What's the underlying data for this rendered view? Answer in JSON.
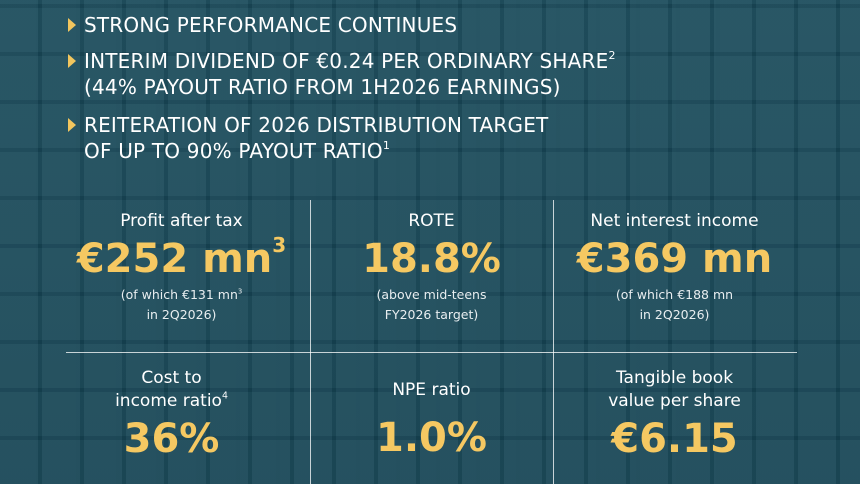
{
  "bullets": [
    {
      "lines": [
        {
          "text": "STRONG PERFORMANCE CONTINUES"
        }
      ]
    },
    {
      "lines": [
        {
          "text": "INTERIM DIVIDEND OF €0.24 PER ORDINARY SHARE",
          "sup": "2"
        },
        {
          "text": "(44% PAYOUT RATIO FROM 1H2026 EARNINGS)"
        }
      ]
    },
    {
      "lines": [
        {
          "text": "REITERATION OF 2026 DISTRIBUTION TARGET"
        },
        {
          "text": "OF UP TO 90% PAYOUT RATIO",
          "sup": "1"
        }
      ]
    }
  ],
  "metrics": [
    {
      "label": [
        {
          "text": "Profit after tax"
        }
      ],
      "value": "€252 mn",
      "value_sup": "3",
      "note": [
        {
          "text": "(of which €131 mn",
          "sup": "3"
        },
        {
          "text": "in 2Q2026)"
        }
      ]
    },
    {
      "label": [
        {
          "text": "ROTE"
        }
      ],
      "value": "18.8%",
      "note": [
        {
          "text": "(above mid-teens"
        },
        {
          "text": "FY2026 target)"
        }
      ]
    },
    {
      "label": [
        {
          "text": "Net interest income"
        }
      ],
      "value": "€369 mn",
      "note": [
        {
          "text": "(of which €188 mn"
        },
        {
          "text": "in 2Q2026)"
        }
      ]
    },
    {
      "label": [
        {
          "text": "Cost to"
        },
        {
          "text": "income ratio",
          "sup": "4"
        }
      ],
      "value": "36%"
    },
    {
      "label": [
        {
          "text": "NPE ratio"
        }
      ],
      "value": "1.0%"
    },
    {
      "label": [
        {
          "text": "Tangible book"
        },
        {
          "text": "value per share"
        }
      ],
      "value": "€6.15"
    }
  ]
}
